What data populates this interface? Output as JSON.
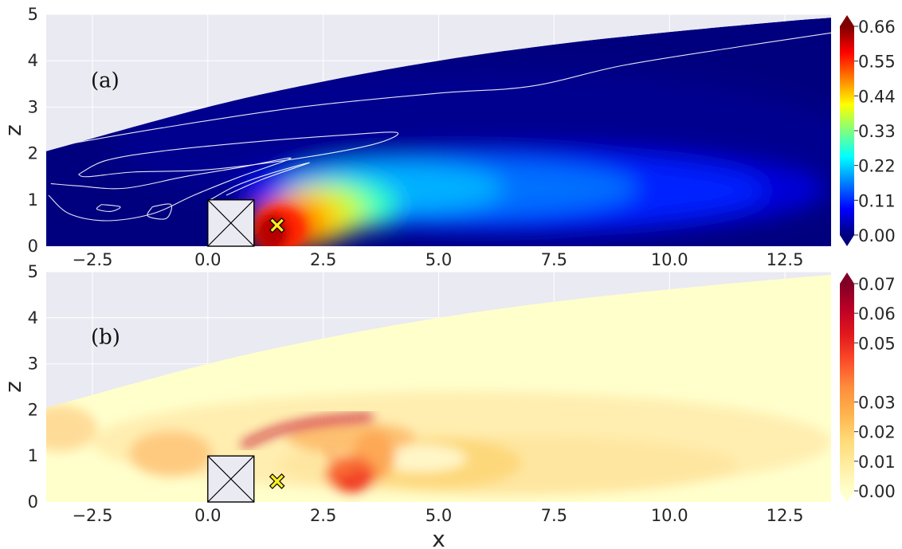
{
  "chart_data": [
    {
      "id": "a",
      "type": "heatmap",
      "panel_label": "(a)",
      "title": "",
      "xlabel": "",
      "ylabel": "z",
      "xlim": [
        -3.5,
        13.5
      ],
      "ylim": [
        0,
        5
      ],
      "x_ticks": [
        -2.5,
        0.0,
        2.5,
        5.0,
        7.5,
        10.0,
        12.5
      ],
      "x_tick_labels": [
        "−2.5",
        "0.0",
        "2.5",
        "5.0",
        "7.5",
        "10.0",
        "12.5"
      ],
      "y_ticks": [
        0,
        1,
        2,
        3,
        4,
        5
      ],
      "y_tick_labels": [
        "0",
        "1",
        "2",
        "3",
        "4",
        "5"
      ],
      "grid": true,
      "colormap": "jet",
      "colorbar": {
        "min": 0.0,
        "max": 0.66,
        "extend": "both",
        "ticks": [
          0.0,
          0.11,
          0.22,
          0.33,
          0.44,
          0.55,
          0.66
        ],
        "tick_labels": [
          "0.00",
          "0.11",
          "0.22",
          "0.33",
          "0.44",
          "0.55",
          "0.66"
        ]
      },
      "domain_top_boundary": [
        [
          -3.5,
          2.05
        ],
        [
          0,
          3.0
        ],
        [
          2.5,
          3.55
        ],
        [
          5,
          4.0
        ],
        [
          7.5,
          4.35
        ],
        [
          10,
          4.62
        ],
        [
          12.5,
          4.85
        ],
        [
          13.5,
          4.93
        ]
      ],
      "obstacle": {
        "x": [
          0,
          1
        ],
        "z": [
          0,
          1
        ]
      },
      "marker": {
        "x": 1.5,
        "z": 0.45,
        "shape": "x",
        "color": "#ffee22"
      },
      "contour_color": "#ffffff"
    },
    {
      "id": "b",
      "type": "heatmap",
      "panel_label": "(b)",
      "title": "",
      "xlabel": "x",
      "ylabel": "z",
      "xlim": [
        -3.5,
        13.5
      ],
      "ylim": [
        0,
        5
      ],
      "x_ticks": [
        -2.5,
        0.0,
        2.5,
        5.0,
        7.5,
        10.0,
        12.5
      ],
      "x_tick_labels": [
        "−2.5",
        "0.0",
        "2.5",
        "5.0",
        "7.5",
        "10.0",
        "12.5"
      ],
      "y_ticks": [
        0,
        1,
        2,
        3,
        4,
        5
      ],
      "y_tick_labels": [
        "0",
        "1",
        "2",
        "3",
        "4",
        "5"
      ],
      "grid": true,
      "colormap": "YlOrRd",
      "colorbar": {
        "min": 0.0,
        "max": 0.07,
        "extend": "both",
        "ticks": [
          0.0,
          0.01,
          0.02,
          0.03,
          0.05,
          0.06,
          0.07
        ],
        "tick_labels": [
          "0.00",
          "0.01",
          "0.02",
          "0.03",
          "0.05",
          "0.06",
          "0.07"
        ]
      },
      "domain_top_boundary": [
        [
          -3.5,
          2.05
        ],
        [
          0,
          3.0
        ],
        [
          2.5,
          3.55
        ],
        [
          5,
          4.0
        ],
        [
          7.5,
          4.35
        ],
        [
          10,
          4.62
        ],
        [
          12.5,
          4.85
        ],
        [
          13.5,
          4.93
        ]
      ],
      "obstacle": {
        "x": [
          0,
          1
        ],
        "z": [
          0,
          1
        ]
      },
      "marker": {
        "x": 1.5,
        "z": 0.45,
        "shape": "x",
        "color": "#ffee22"
      }
    }
  ],
  "colors": {
    "axes_background": "#eaeaf2",
    "grid": "#ffffff",
    "obstacle_fill": "#eaeaf2",
    "jet_stops": [
      "#00007f",
      "#0000ff",
      "#007fff",
      "#00ffff",
      "#7fff7f",
      "#ffff00",
      "#ff7f00",
      "#ff0000",
      "#7f0000"
    ],
    "ylorrd_stops": [
      "#ffffcc",
      "#ffeda0",
      "#fed976",
      "#feb24c",
      "#fd8d3c",
      "#fc4e2a",
      "#e31a1c",
      "#bd0026",
      "#800026"
    ]
  }
}
